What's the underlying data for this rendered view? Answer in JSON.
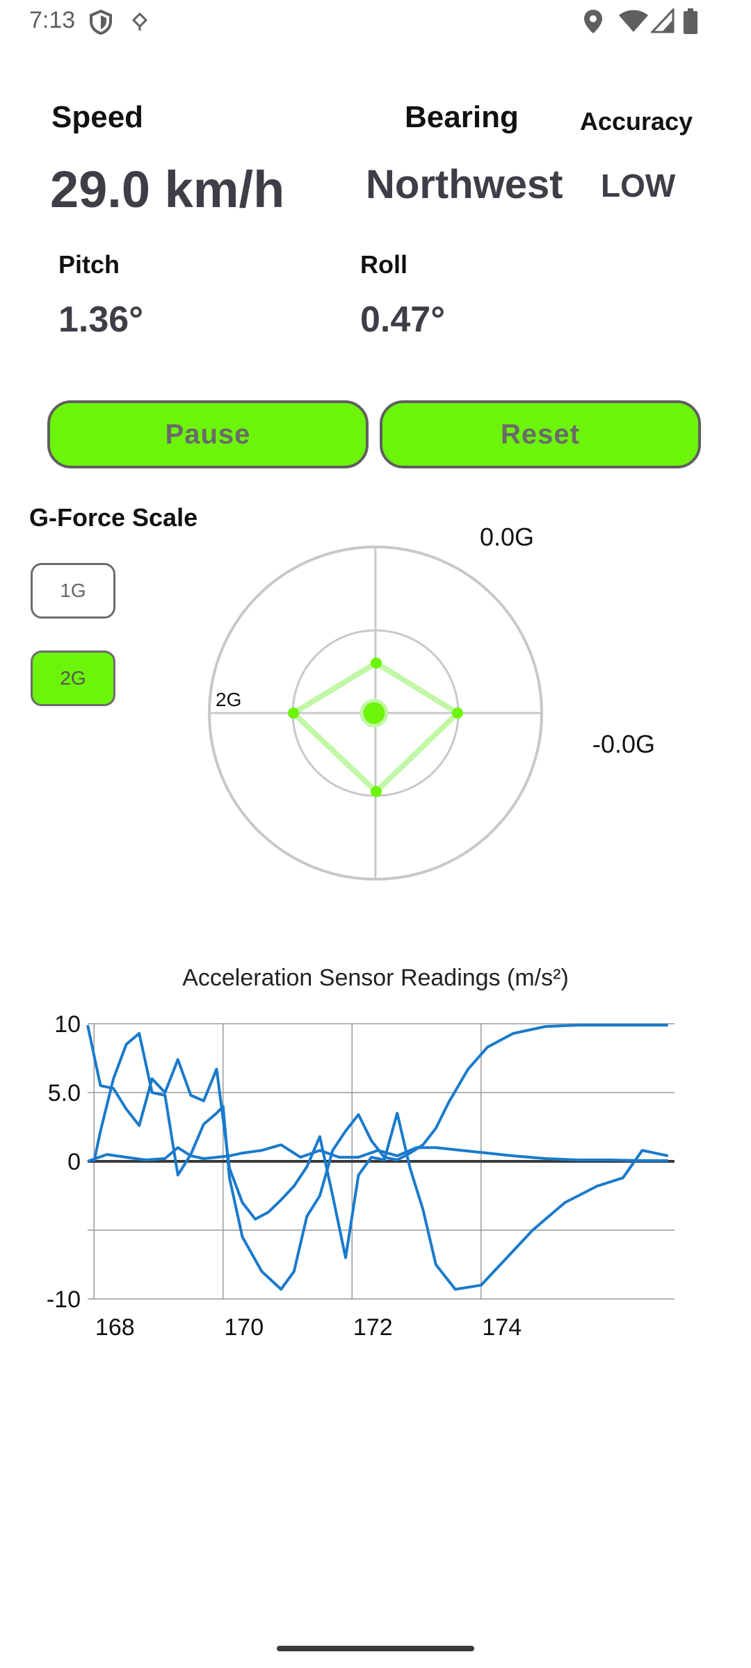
{
  "status": {
    "time": "7:13",
    "icons": [
      "shield-icon",
      "nav-drop-icon",
      "location-icon",
      "wifi-icon",
      "signal-icon",
      "battery-icon"
    ]
  },
  "metrics": {
    "speed_label": "Speed",
    "speed_value": "29.0 km/h",
    "bearing_label": "Bearing",
    "bearing_value": "Northwest",
    "accuracy_label": "Accuracy",
    "accuracy_value": "LOW",
    "pitch_label": "Pitch",
    "pitch_value": "1.36°",
    "roll_label": "Roll",
    "roll_value": "0.47°"
  },
  "buttons": {
    "pause": "Pause",
    "reset": "Reset"
  },
  "gforce": {
    "scale_title": "G-Force Scale",
    "scale_options": [
      "1G",
      "2G"
    ],
    "selected_scale": "2G",
    "top_reading": "0.0G",
    "right_reading": "-0.0G",
    "ring_label": "2G",
    "accent_color": "#6cf50a"
  },
  "chart_data": {
    "type": "line",
    "title": "Acceleration Sensor Readings (m/s²)",
    "xlabel": "",
    "ylabel": "",
    "xlim": [
      167.9,
      177.0
    ],
    "ylim": [
      -10,
      10
    ],
    "y_ticks": [
      "10",
      "5.0",
      "0",
      "-10"
    ],
    "x_ticks": [
      "168",
      "170",
      "172",
      "174"
    ],
    "x_tick_values": [
      168,
      170,
      172,
      174
    ],
    "grid": true,
    "color": "#1a7acb",
    "series": [
      {
        "x": [
          168.0,
          168.1,
          168.3,
          168.5,
          168.7,
          168.9,
          169.1,
          169.3,
          169.5,
          169.7,
          169.9,
          170.0,
          170.1,
          170.3,
          170.6,
          170.9,
          171.1,
          171.3,
          171.5,
          171.7,
          171.9,
          172.1,
          172.3,
          172.5,
          172.7,
          172.9,
          173.1,
          173.3,
          173.5,
          173.8,
          174.1,
          174.5,
          175.0,
          175.5,
          176.0,
          176.5,
          176.9
        ],
        "y": [
          0,
          2.2,
          6.0,
          8.5,
          9.3,
          5.0,
          4.8,
          -1.0,
          0.5,
          2.7,
          3.5,
          4.0,
          -1.2,
          -5.5,
          -8.0,
          -9.3,
          -8.0,
          -4.0,
          -2.5,
          0.8,
          2.2,
          3.4,
          1.5,
          0.3,
          0.1,
          0.6,
          1.2,
          2.4,
          4.3,
          6.7,
          8.3,
          9.3,
          9.8,
          9.9,
          9.9,
          9.9,
          9.9
        ]
      },
      {
        "x": [
          167.9,
          168.1,
          168.3,
          168.5,
          168.7,
          168.9,
          169.1,
          169.3,
          169.5,
          169.7,
          169.9,
          170.1,
          170.3,
          170.5,
          170.7,
          170.9,
          171.1,
          171.3,
          171.5,
          171.7,
          171.9,
          172.1,
          172.3,
          172.5,
          172.7,
          172.9,
          173.1,
          173.3,
          173.6,
          174.0,
          174.4,
          174.8,
          175.3,
          175.8,
          176.2,
          176.5,
          176.9
        ],
        "y": [
          9.9,
          5.5,
          5.3,
          3.8,
          2.6,
          6.0,
          5.0,
          7.4,
          4.8,
          4.4,
          6.7,
          -0.5,
          -3.0,
          -4.2,
          -3.7,
          -2.8,
          -1.8,
          -0.4,
          1.8,
          -2.5,
          -7.0,
          -1.0,
          0.3,
          0.1,
          3.5,
          -0.5,
          -3.5,
          -7.5,
          -9.3,
          -9.0,
          -7.0,
          -5.0,
          -3.0,
          -1.8,
          -1.2,
          0.8,
          0.4
        ]
      },
      {
        "x": [
          167.9,
          168.2,
          168.5,
          168.8,
          169.1,
          169.3,
          169.5,
          169.7,
          169.9,
          170.1,
          170.3,
          170.6,
          170.9,
          171.2,
          171.5,
          171.8,
          172.1,
          172.4,
          172.7,
          173.0,
          173.3,
          173.7,
          174.1,
          174.5,
          175.0,
          175.5,
          176.0,
          176.5,
          176.9
        ],
        "y": [
          0,
          0.5,
          0.3,
          0.1,
          0.2,
          1.0,
          0.4,
          0.2,
          0.3,
          0.4,
          0.6,
          0.8,
          1.2,
          0.3,
          0.8,
          0.3,
          0.3,
          0.8,
          0.4,
          1.0,
          1.0,
          0.8,
          0.6,
          0.4,
          0.2,
          0.1,
          0.1,
          0.05,
          0.05
        ]
      }
    ]
  }
}
